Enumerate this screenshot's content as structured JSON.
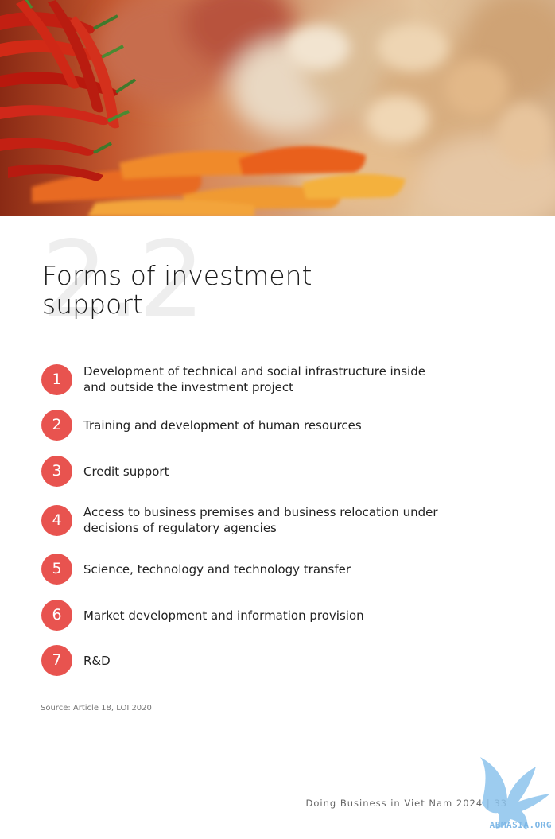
{
  "hero": {
    "image": "chili-peppers-and-ginger-photo"
  },
  "section": {
    "number": "2.2",
    "title_line1": "Forms of investment",
    "title_line2": "support"
  },
  "list": [
    {
      "number": "1",
      "text_line1": "Development of technical and social infrastructure inside",
      "text_line2": "and outside the investment project"
    },
    {
      "number": "2",
      "text_line1": "Training and development of human resources",
      "text_line2": ""
    },
    {
      "number": "3",
      "text_line1": "Credit support",
      "text_line2": ""
    },
    {
      "number": "4",
      "text_line1": "Access to business premises and business relocation under",
      "text_line2": "decisions of regulatory agencies"
    },
    {
      "number": "5",
      "text_line1": "Science, technology and technology transfer",
      "text_line2": ""
    },
    {
      "number": "6",
      "text_line1": "Market development and information provision",
      "text_line2": ""
    },
    {
      "number": "7",
      "text_line1": "R&D",
      "text_line2": ""
    }
  ],
  "source": "Source: Article 18, LOI 2020",
  "footer": {
    "text": "Doing Business in Viet Nam 2024 | 33"
  },
  "watermark": {
    "text": "ABMASIA.ORG",
    "icon": "blue-bird-logo-icon"
  },
  "colors": {
    "accent": "#e8534f",
    "title": "#1c1c1c",
    "number_ghost": "#eeeeee"
  }
}
